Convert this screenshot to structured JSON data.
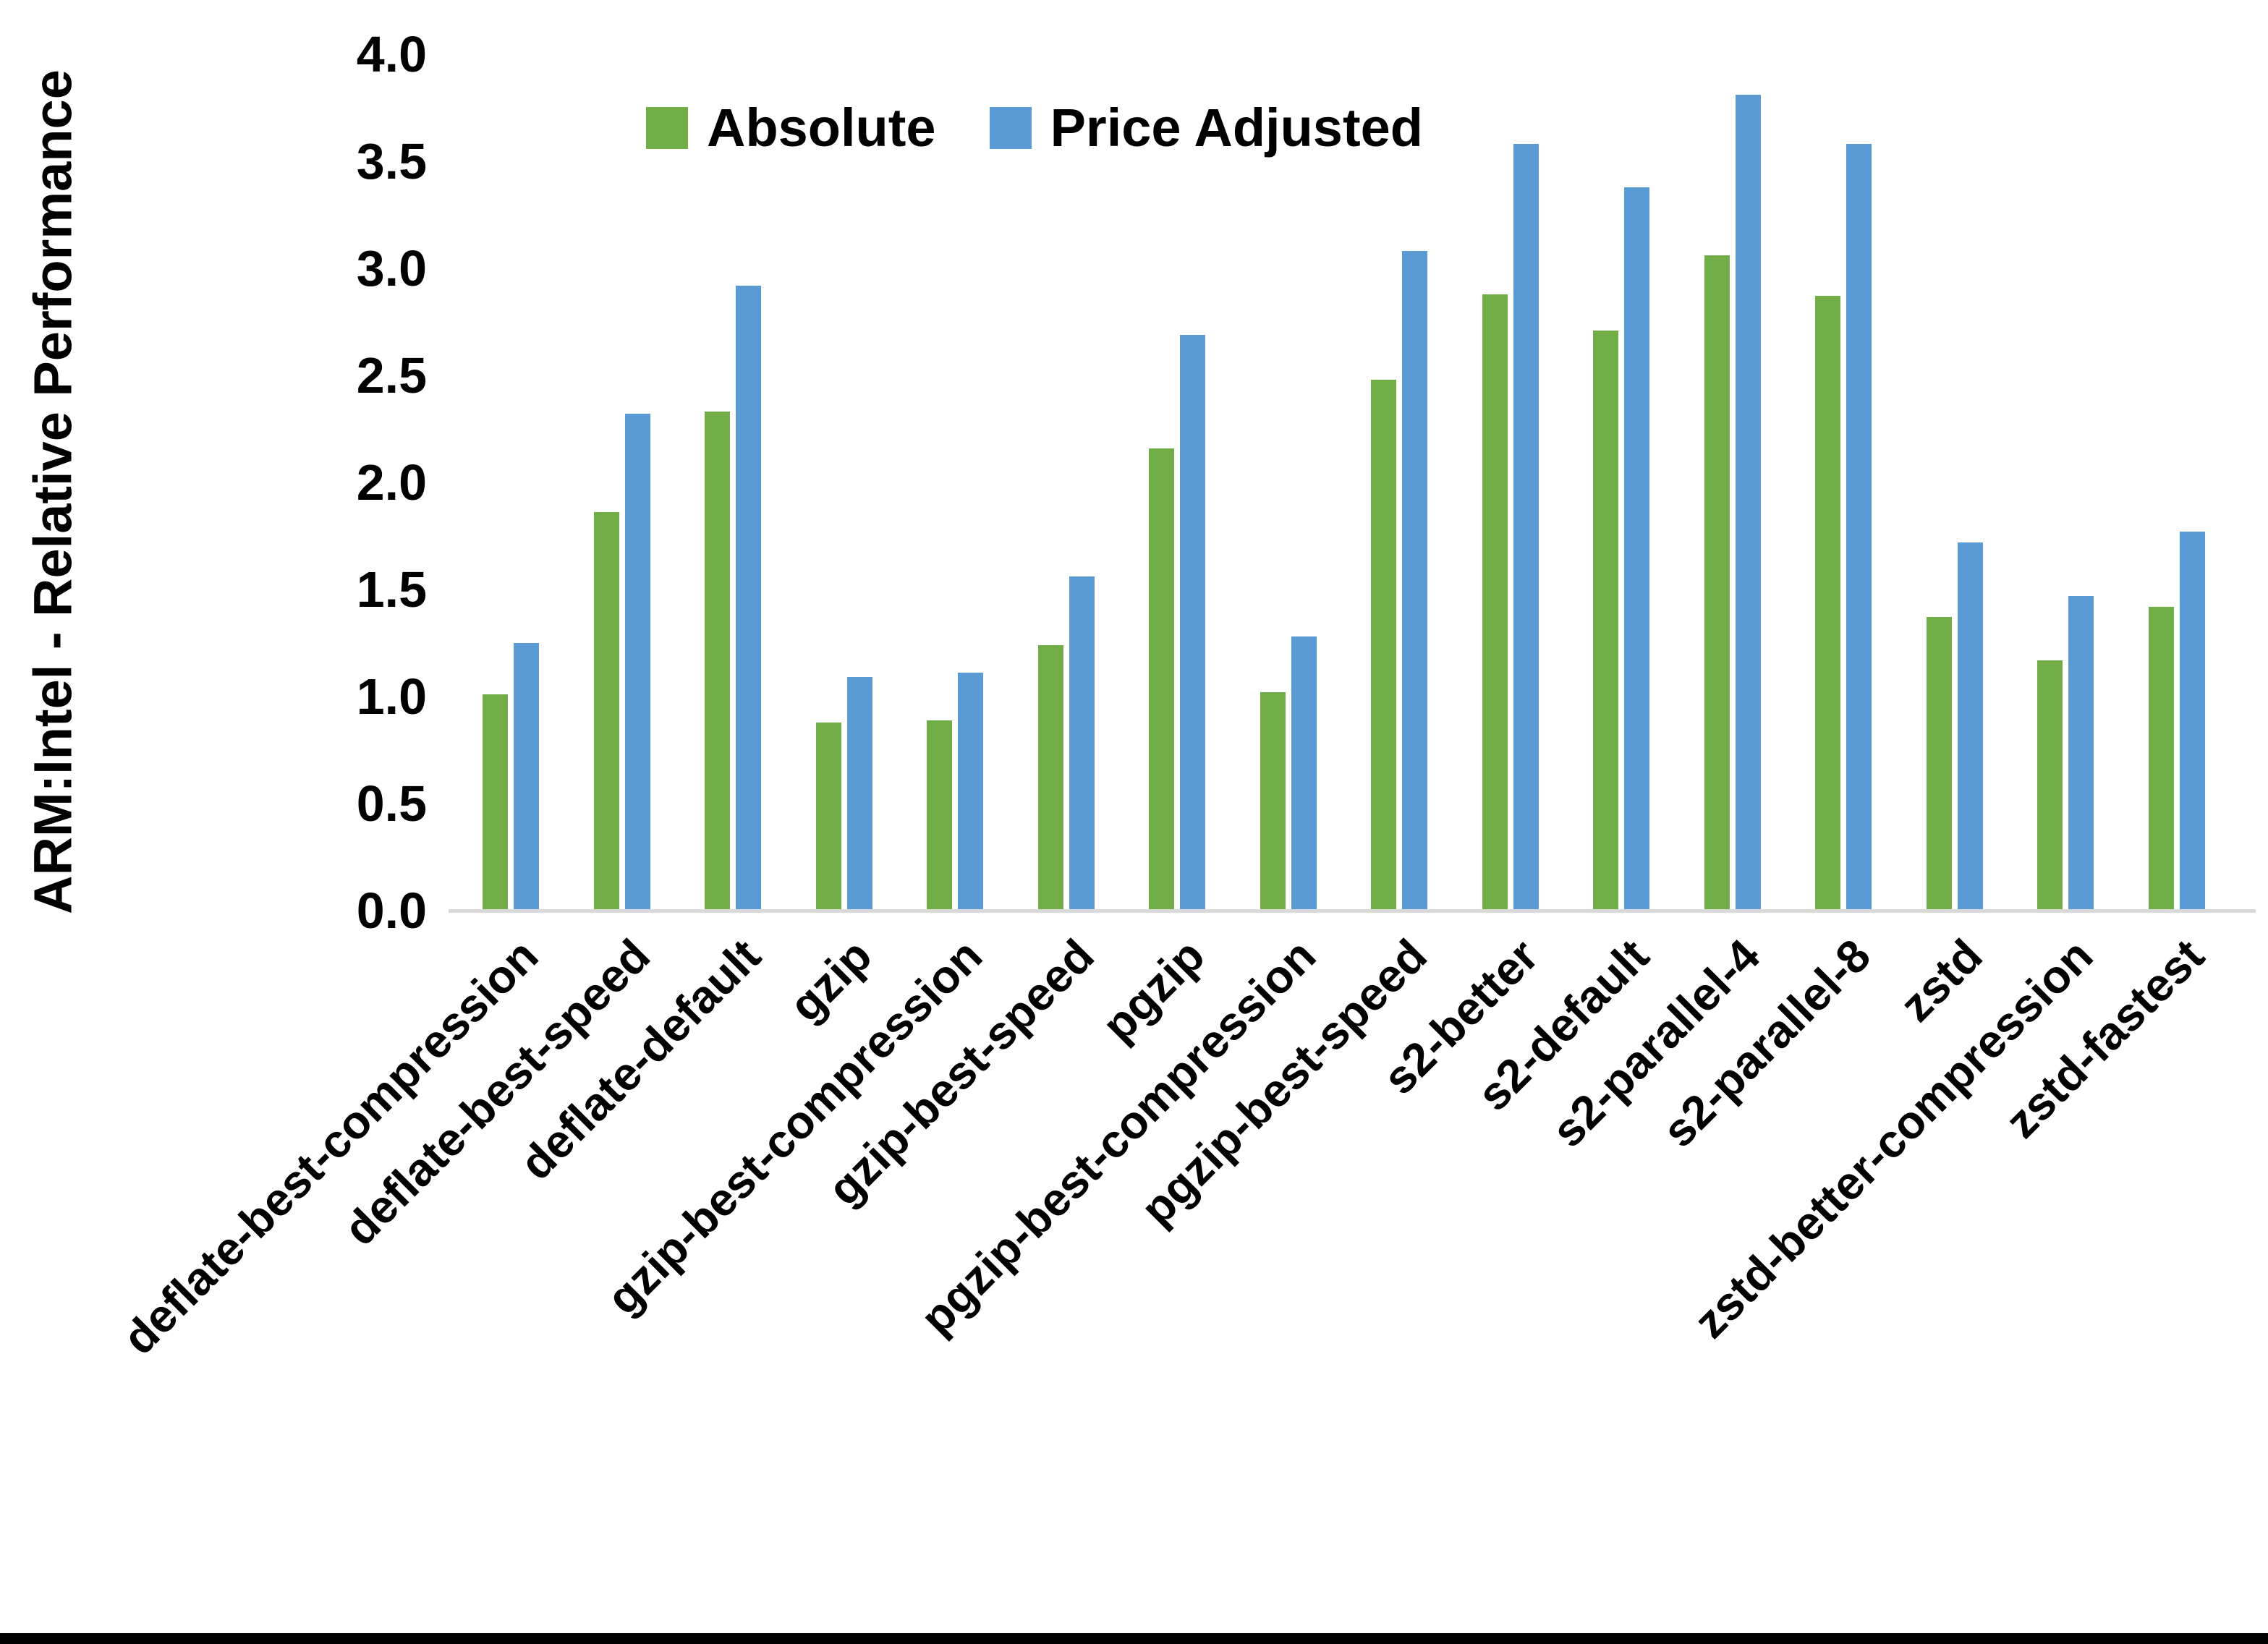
{
  "chart_data": {
    "type": "bar",
    "ylabel": "ARM:Intel - Relative Performance",
    "ylim": [
      0.0,
      4.0
    ],
    "ytick_step": 0.5,
    "ytick_labels": [
      "4.0",
      "3.5",
      "3.0",
      "2.5",
      "2.0",
      "1.5",
      "1.0",
      "0.5",
      "0.0"
    ],
    "grid": false,
    "legend_position": "top-center",
    "categories": [
      "deflate-best-compression",
      "deflate-best-speed",
      "deflate-default",
      "gzip",
      "gzip-best-compression",
      "gzip-best-speed",
      "pgzip",
      "pgzip-best-compression",
      "pgzip-best-speed",
      "s2-better",
      "s2-default",
      "s2-parallel-4",
      "s2-parallel-8",
      "zstd",
      "zstd-better-compression",
      "zstd-fastest"
    ],
    "series": [
      {
        "name": "Absolute",
        "color": "#70AD47",
        "values": [
          1.01,
          1.86,
          2.33,
          0.88,
          0.89,
          1.24,
          2.16,
          1.02,
          2.48,
          2.88,
          2.71,
          3.06,
          2.87,
          1.37,
          1.17,
          1.42
        ]
      },
      {
        "name": "Price Adjusted",
        "color": "#5B9BD5",
        "values": [
          1.25,
          2.32,
          2.92,
          1.09,
          1.11,
          1.56,
          2.69,
          1.28,
          3.08,
          3.58,
          3.38,
          3.81,
          3.58,
          1.72,
          1.47,
          1.77
        ]
      }
    ],
    "axis_line_color": "#D9D9D9",
    "bottom_border_color": "#000000"
  }
}
